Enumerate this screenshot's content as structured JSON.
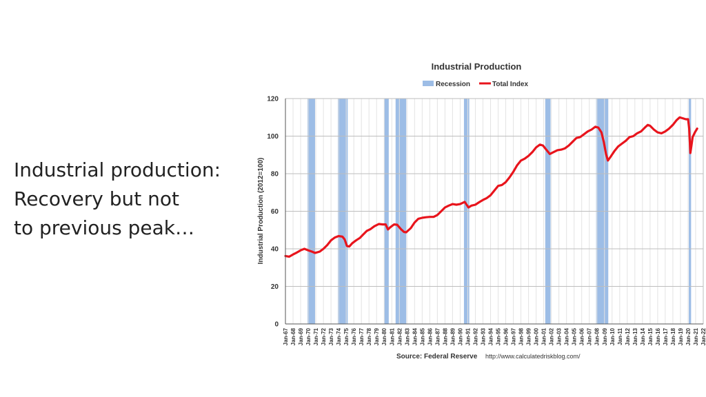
{
  "slide": {
    "lines": [
      "Industrial production:",
      "Recovery but not",
      "to previous peak…"
    ]
  },
  "chart_data": {
    "type": "line",
    "title": "Industrial Production",
    "ylabel": "Industrial Production (2012=100)",
    "xlabel": "",
    "ylim": [
      0,
      120
    ],
    "yticks": [
      0,
      20,
      40,
      60,
      80,
      100,
      120
    ],
    "xlim": [
      1967.0,
      2022.0
    ],
    "grid": true,
    "legend_placement": "top-center",
    "legend": {
      "recession": "Recession",
      "series": "Total Index"
    },
    "colors": {
      "recession": "#9dbde6",
      "series": "#e8141c",
      "grid": "#cfcfcf"
    },
    "x_tick_labels": [
      "Jan-67",
      "Jan-68",
      "Jan-69",
      "Jan-70",
      "Jan-71",
      "Jan-72",
      "Jan-73",
      "Jan-74",
      "Jan-75",
      "Jan-76",
      "Jan-77",
      "Jan-78",
      "Jan-79",
      "Jan-80",
      "Jan-81",
      "Jan-82",
      "Jan-83",
      "Jan-84",
      "Jan-85",
      "Jan-86",
      "Jan-87",
      "Jan-88",
      "Jan-89",
      "Jan-90",
      "Jan-91",
      "Jan-92",
      "Jan-93",
      "Jan-94",
      "Jan-95",
      "Jan-96",
      "Jan-97",
      "Jan-98",
      "Jan-99",
      "Jan-00",
      "Jan-01",
      "Jan-02",
      "Jan-03",
      "Jan-04",
      "Jan-05",
      "Jan-06",
      "Jan-07",
      "Jan-08",
      "Jan-09",
      "Jan-10",
      "Jan-11",
      "Jan-12",
      "Jan-13",
      "Jan-14",
      "Jan-15",
      "Jan-16",
      "Jan-17",
      "Jan-18",
      "Jan-19",
      "Jan-20",
      "Jan-21",
      "Jan-22"
    ],
    "recessions": [
      [
        1969.9,
        1970.9
      ],
      [
        1973.9,
        1975.2
      ],
      [
        1980.0,
        1980.6
      ],
      [
        1981.5,
        1982.9
      ],
      [
        1990.5,
        1991.2
      ],
      [
        2001.2,
        2001.9
      ],
      [
        2007.9,
        2009.5
      ],
      [
        2020.1,
        2020.4
      ]
    ],
    "series": [
      {
        "name": "Total Index",
        "points": [
          [
            1967.0,
            36.2
          ],
          [
            1967.5,
            35.8
          ],
          [
            1968.0,
            37.0
          ],
          [
            1968.5,
            38.0
          ],
          [
            1969.0,
            39.2
          ],
          [
            1969.5,
            40.0
          ],
          [
            1970.0,
            39.2
          ],
          [
            1970.5,
            38.5
          ],
          [
            1970.9,
            37.8
          ],
          [
            1971.5,
            38.5
          ],
          [
            1972.0,
            40.0
          ],
          [
            1972.5,
            42.0
          ],
          [
            1973.0,
            44.5
          ],
          [
            1973.5,
            46.0
          ],
          [
            1974.0,
            46.8
          ],
          [
            1974.5,
            46.5
          ],
          [
            1974.8,
            45.0
          ],
          [
            1975.1,
            41.5
          ],
          [
            1975.4,
            41.2
          ],
          [
            1975.8,
            43.0
          ],
          [
            1976.3,
            44.5
          ],
          [
            1976.8,
            45.8
          ],
          [
            1977.2,
            47.5
          ],
          [
            1977.7,
            49.5
          ],
          [
            1978.2,
            50.5
          ],
          [
            1978.7,
            52.0
          ],
          [
            1979.3,
            53.2
          ],
          [
            1979.8,
            53.0
          ],
          [
            1980.2,
            53.0
          ],
          [
            1980.5,
            50.3
          ],
          [
            1980.8,
            51.5
          ],
          [
            1981.3,
            53.0
          ],
          [
            1981.7,
            52.8
          ],
          [
            1982.2,
            50.5
          ],
          [
            1982.6,
            49.0
          ],
          [
            1982.9,
            48.8
          ],
          [
            1983.5,
            51.0
          ],
          [
            1984.0,
            54.0
          ],
          [
            1984.5,
            56.0
          ],
          [
            1985.0,
            56.5
          ],
          [
            1985.5,
            56.8
          ],
          [
            1986.0,
            57.0
          ],
          [
            1986.5,
            57.0
          ],
          [
            1987.0,
            58.0
          ],
          [
            1987.5,
            60.0
          ],
          [
            1988.0,
            62.0
          ],
          [
            1988.5,
            63.0
          ],
          [
            1989.0,
            63.8
          ],
          [
            1989.5,
            63.5
          ],
          [
            1990.0,
            63.8
          ],
          [
            1990.6,
            65.0
          ],
          [
            1991.1,
            62.0
          ],
          [
            1991.5,
            63.0
          ],
          [
            1992.0,
            63.5
          ],
          [
            1992.5,
            64.8
          ],
          [
            1993.0,
            66.0
          ],
          [
            1993.5,
            67.0
          ],
          [
            1994.0,
            68.5
          ],
          [
            1994.5,
            71.0
          ],
          [
            1995.0,
            73.5
          ],
          [
            1995.5,
            74.0
          ],
          [
            1996.0,
            75.5
          ],
          [
            1996.5,
            78.0
          ],
          [
            1997.0,
            81.0
          ],
          [
            1997.5,
            84.5
          ],
          [
            1998.0,
            87.0
          ],
          [
            1998.5,
            88.0
          ],
          [
            1999.0,
            89.5
          ],
          [
            1999.5,
            91.5
          ],
          [
            2000.0,
            94.0
          ],
          [
            2000.5,
            95.5
          ],
          [
            2000.9,
            95.0
          ],
          [
            2001.3,
            93.0
          ],
          [
            2001.8,
            90.5
          ],
          [
            2002.3,
            91.5
          ],
          [
            2002.8,
            92.5
          ],
          [
            2003.3,
            92.8
          ],
          [
            2003.8,
            93.5
          ],
          [
            2004.3,
            95.0
          ],
          [
            2004.8,
            97.0
          ],
          [
            2005.3,
            99.0
          ],
          [
            2005.8,
            99.5
          ],
          [
            2006.3,
            101.0
          ],
          [
            2006.8,
            102.5
          ],
          [
            2007.3,
            103.5
          ],
          [
            2007.8,
            105.0
          ],
          [
            2008.2,
            104.5
          ],
          [
            2008.6,
            102.0
          ],
          [
            2008.9,
            97.0
          ],
          [
            2009.2,
            90.5
          ],
          [
            2009.45,
            87.0
          ],
          [
            2009.8,
            89.0
          ],
          [
            2010.3,
            92.0
          ],
          [
            2010.8,
            94.5
          ],
          [
            2011.3,
            96.0
          ],
          [
            2011.8,
            97.5
          ],
          [
            2012.3,
            99.5
          ],
          [
            2012.8,
            100.0
          ],
          [
            2013.3,
            101.5
          ],
          [
            2013.8,
            102.5
          ],
          [
            2014.3,
            104.5
          ],
          [
            2014.7,
            106.0
          ],
          [
            2015.0,
            105.5
          ],
          [
            2015.5,
            103.5
          ],
          [
            2016.0,
            102.0
          ],
          [
            2016.5,
            101.5
          ],
          [
            2017.0,
            102.5
          ],
          [
            2017.5,
            104.0
          ],
          [
            2018.0,
            106.0
          ],
          [
            2018.5,
            108.5
          ],
          [
            2018.9,
            110.0
          ],
          [
            2019.3,
            109.5
          ],
          [
            2019.7,
            109.0
          ],
          [
            2020.0,
            109.0
          ],
          [
            2020.15,
            104.0
          ],
          [
            2020.3,
            91.0
          ],
          [
            2020.45,
            95.0
          ],
          [
            2020.6,
            99.5
          ],
          [
            2020.9,
            102.0
          ],
          [
            2021.2,
            104.0
          ]
        ]
      }
    ],
    "source": {
      "label": "Source: Federal Reserve",
      "url": "http://www.calculatedriskblog.com/"
    }
  }
}
